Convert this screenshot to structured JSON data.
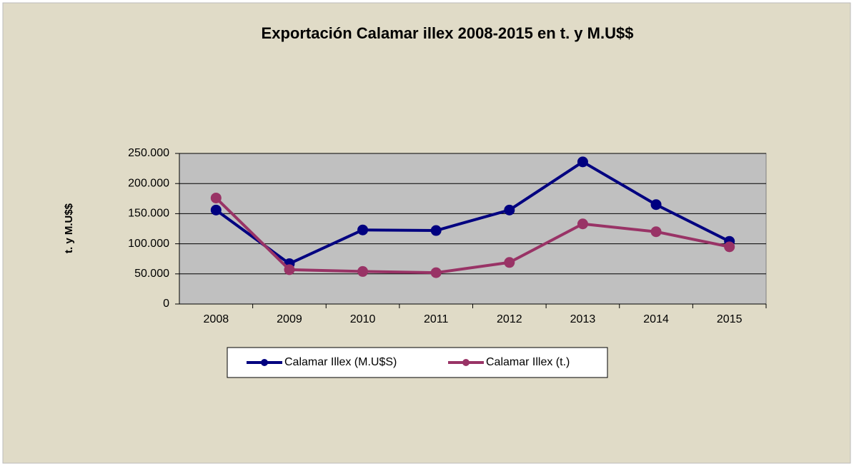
{
  "chart_data": {
    "type": "line",
    "title": "Exportación Calamar illex 2008-2015 en t. y M.U$$",
    "y_label": "t. y M.U$$",
    "categories": [
      "2008",
      "2009",
      "2010",
      "2011",
      "2012",
      "2013",
      "2014",
      "2015"
    ],
    "series": [
      {
        "name": "Calamar Illex (M.U$S)",
        "color": "#000080",
        "values": [
          156000,
          67000,
          123000,
          122000,
          156000,
          236000,
          165000,
          104000
        ]
      },
      {
        "name": "Calamar Illex (t.)",
        "color": "#993366",
        "values": [
          176000,
          57000,
          54000,
          52000,
          69000,
          133000,
          120000,
          95000
        ]
      }
    ],
    "ylim": [
      0,
      250000
    ],
    "yticks": [
      0,
      {
        "value": 50000,
        "label": "50.000"
      },
      {
        "value": 100000,
        "label": "100.000"
      },
      {
        "value": 150000,
        "label": "150.000"
      },
      {
        "value": 200000,
        "label": "200.000"
      },
      {
        "value": 250000,
        "label": "250.000"
      }
    ],
    "grid": true,
    "legend": "bottom"
  }
}
